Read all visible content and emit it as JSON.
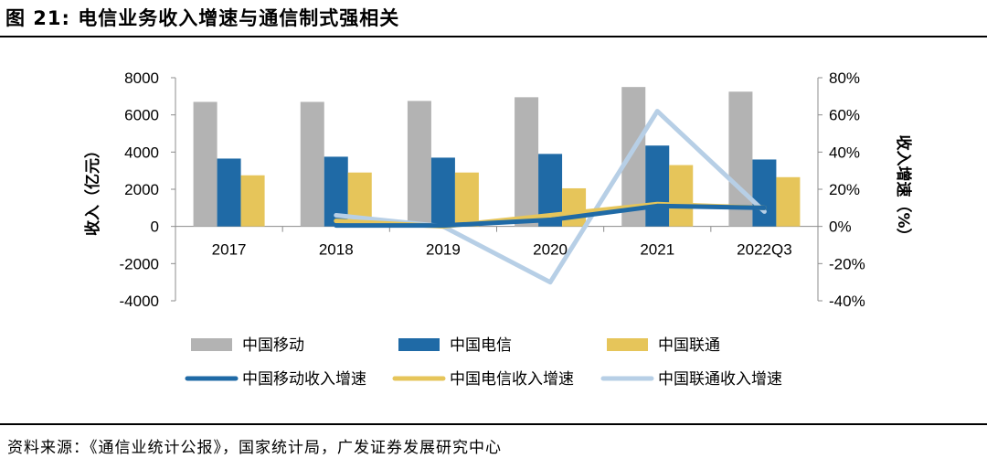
{
  "figure_title": "图 21: 电信业务收入增速与通信制式强相关",
  "source": "资料来源：《通信业统计公报》，国家统计局，广发证券发展研究中心",
  "colors": {
    "mobile_bar": "#b3b3b3",
    "telecom_bar": "#1f6aa6",
    "unicom_bar": "#e6c55a",
    "mobile_line": "#1f6aa6",
    "telecom_line": "#e6c55a",
    "unicom_line": "#b7cfe6"
  },
  "chart_data": {
    "type": "bar+line",
    "title": "电信业务收入增速与通信制式强相关",
    "categories": [
      "2017",
      "2018",
      "2019",
      "2020",
      "2021",
      "2022Q3"
    ],
    "left_axis": {
      "label": "收入（亿元）",
      "range": [
        -4000,
        8000
      ],
      "ticks": [
        -4000,
        -2000,
        0,
        2000,
        4000,
        6000,
        8000
      ],
      "tick_labels": [
        "-4000",
        "-2000",
        "0",
        "2000",
        "4000",
        "6000",
        "8000"
      ]
    },
    "right_axis": {
      "label": "收入增速（%）",
      "range": [
        -40,
        80
      ],
      "ticks": [
        -40,
        -20,
        0,
        20,
        40,
        60,
        80
      ],
      "tick_labels": [
        "-40%",
        "-20%",
        "0%",
        "20%",
        "40%",
        "60%",
        "80%"
      ]
    },
    "bar_series": [
      {
        "name": "中国移动",
        "values": [
          6700,
          6700,
          6750,
          6950,
          7500,
          7250
        ]
      },
      {
        "name": "中国电信",
        "values": [
          3650,
          3750,
          3700,
          3900,
          4350,
          3600
        ]
      },
      {
        "name": "中国联通",
        "values": [
          2750,
          2900,
          2900,
          2050,
          3300,
          2650
        ]
      }
    ],
    "line_series": [
      {
        "name": "中国移动收入增速",
        "x": [
          "2018",
          "2019",
          "2020",
          "2021",
          "2022Q3"
        ],
        "values": [
          0.5,
          0.5,
          3.5,
          11,
          10
        ]
      },
      {
        "name": "中国电信收入增速",
        "x": [
          "2018",
          "2019",
          "2020",
          "2021",
          "2022Q3"
        ],
        "values": [
          3,
          0,
          6,
          12,
          10
        ]
      },
      {
        "name": "中国联通收入增速",
        "x": [
          "2018",
          "2019",
          "2020",
          "2021",
          "2022Q3"
        ],
        "values": [
          6,
          0,
          -30,
          62,
          8
        ]
      }
    ],
    "legend": [
      {
        "name": "中国移动",
        "kind": "bar"
      },
      {
        "name": "中国电信",
        "kind": "bar"
      },
      {
        "name": "中国联通",
        "kind": "bar"
      },
      {
        "name": "中国移动收入增速",
        "kind": "line"
      },
      {
        "name": "中国电信收入增速",
        "kind": "line"
      },
      {
        "name": "中国联通收入增速",
        "kind": "line"
      }
    ],
    "legend_position": "bottom"
  }
}
